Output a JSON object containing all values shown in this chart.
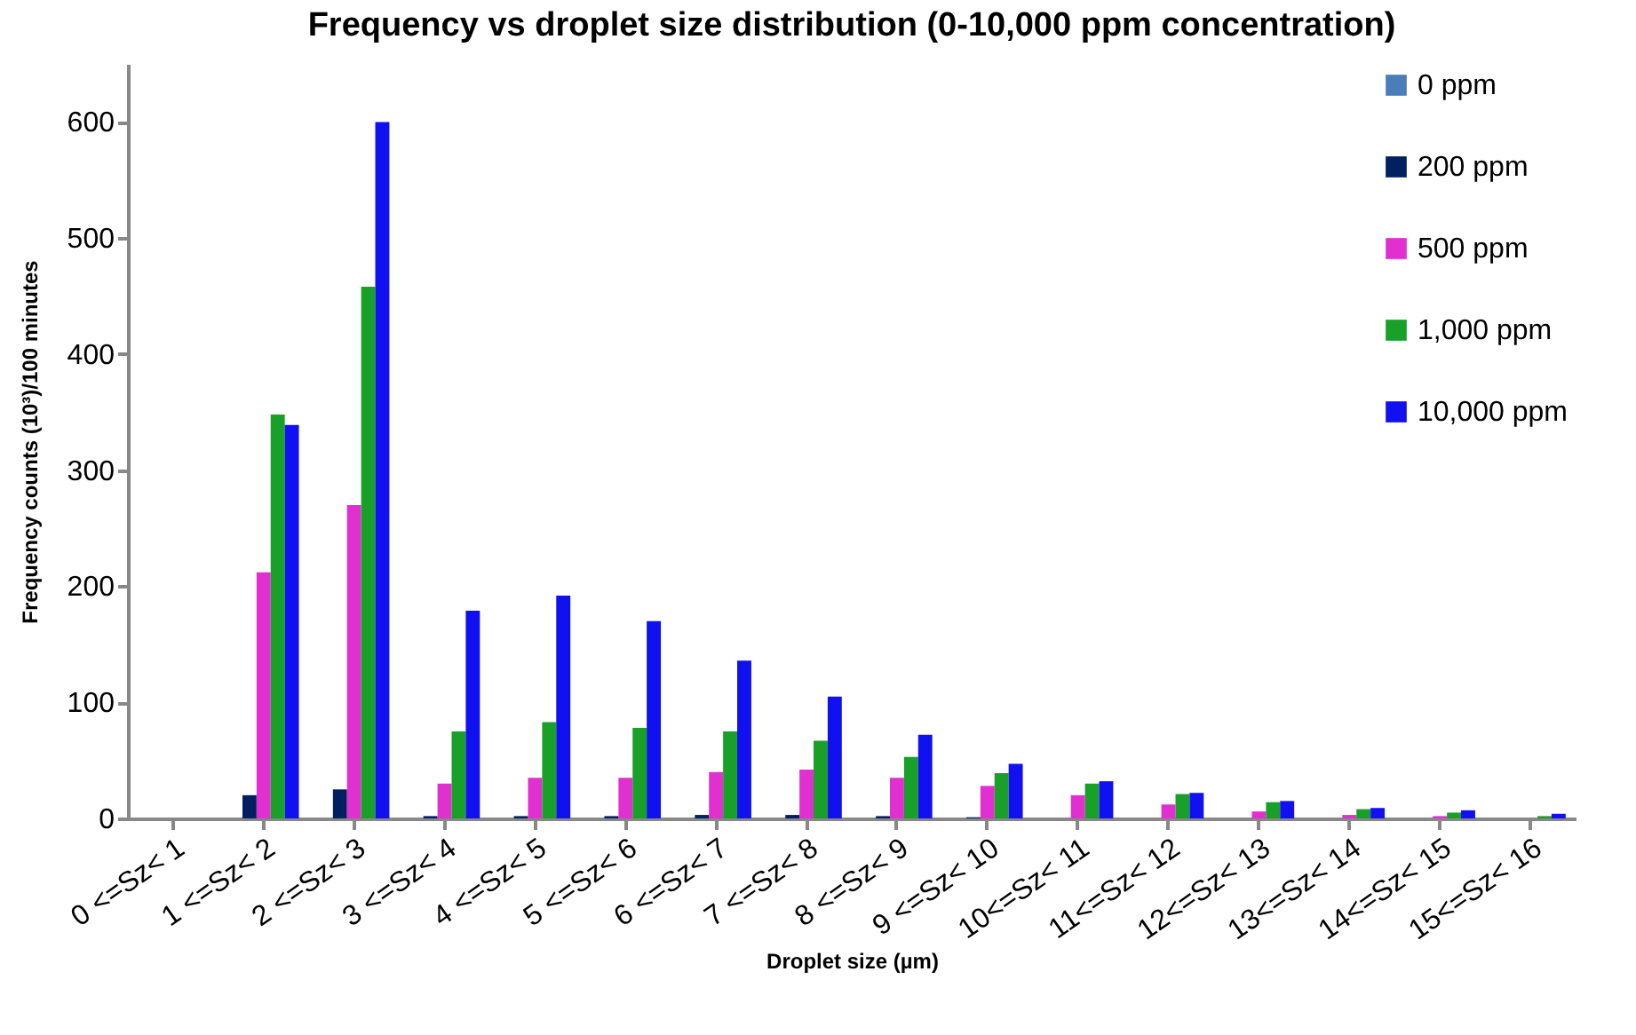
{
  "chart_data": {
    "type": "bar",
    "title": "Frequency vs droplet size distribution (0-10,000 ppm concentration)",
    "xlabel": "Droplet size (µm)",
    "ylabel": "Frequency counts (10³)/100 minutes",
    "categories": [
      "0 <=Sz< 1",
      "1 <=Sz< 2",
      "2 <=Sz< 3",
      "3 <=Sz< 4",
      "4 <=Sz< 5",
      "5 <=Sz< 6",
      "6 <=Sz< 7",
      "7 <=Sz< 8",
      "8 <=Sz< 9",
      "9 <=Sz< 10",
      "10<=Sz< 11",
      "11<=Sz< 12",
      "12<=Sz< 13",
      "13<=Sz< 14",
      "14<=Sz< 15",
      "15<=Sz< 16"
    ],
    "series": [
      {
        "name": "0 ppm",
        "color": "#4a7ebb",
        "values": [
          null,
          0,
          0,
          0,
          0,
          0,
          0,
          0,
          0,
          0,
          0,
          0,
          0,
          0,
          0,
          0
        ]
      },
      {
        "name": "200 ppm",
        "color": "#002060",
        "values": [
          null,
          20,
          25,
          2,
          2,
          2,
          3,
          3,
          2,
          1,
          0,
          0,
          0,
          0,
          0,
          0
        ]
      },
      {
        "name": "500 ppm",
        "color": "#e030d0",
        "values": [
          null,
          212,
          270,
          30,
          35,
          35,
          40,
          42,
          35,
          28,
          20,
          12,
          6,
          3,
          2,
          0
        ]
      },
      {
        "name": "1,000 ppm",
        "color": "#18a028",
        "values": [
          null,
          348,
          458,
          75,
          83,
          78,
          75,
          67,
          53,
          39,
          30,
          21,
          14,
          8,
          5,
          2
        ]
      },
      {
        "name": "10,000 ppm",
        "color": "#1010f0",
        "values": [
          null,
          339,
          600,
          179,
          192,
          170,
          136,
          105,
          72,
          47,
          32,
          22,
          15,
          9,
          7,
          4
        ]
      }
    ],
    "ylim": [
      0,
      650
    ],
    "yticks": [
      0,
      100,
      200,
      300,
      400,
      500,
      600
    ],
    "grid": false,
    "legend": "top right"
  }
}
